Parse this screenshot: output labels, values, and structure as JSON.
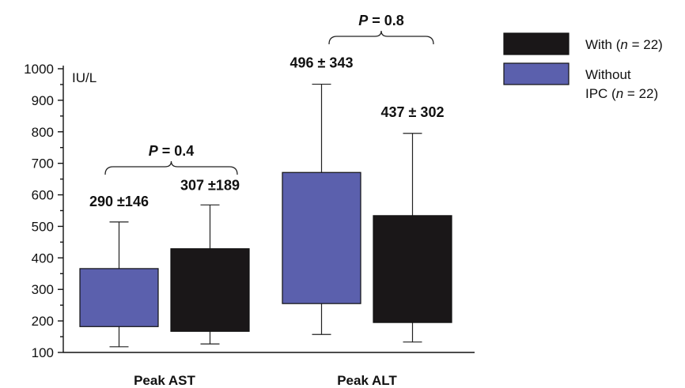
{
  "chart_data": {
    "type": "box",
    "y_unit": "IU/L",
    "ylim": [
      100,
      1000
    ],
    "yticks": [
      100,
      200,
      300,
      400,
      500,
      600,
      700,
      800,
      900,
      1000
    ],
    "categories": [
      "Peak AST",
      "Peak ALT"
    ],
    "legend": {
      "placement": "top-right",
      "entries": [
        {
          "label": "With (",
          "italic": "n",
          "suffix": " = 22)",
          "color": "#1a1718"
        },
        {
          "label": "Without",
          "line2_prefix": "IPC (",
          "italic": "n",
          "suffix": " = 22)",
          "color": "#5b60ad"
        }
      ]
    },
    "groups": [
      {
        "category": "Peak AST",
        "p_value": {
          "label": "P",
          "text": " = 0.4"
        },
        "boxes": [
          {
            "series": "Without",
            "color": "#5b60ad",
            "whisker_low": 118,
            "q1": 182,
            "q3": 366,
            "whisker_high": 514,
            "annotation": "290 ±146"
          },
          {
            "series": "With",
            "color": "#1a1718",
            "whisker_low": 127,
            "q1": 167,
            "q3": 429,
            "whisker_high": 568,
            "annotation": "307 ±189"
          }
        ]
      },
      {
        "category": "Peak ALT",
        "p_value": {
          "label": "P",
          "text": " = 0.8"
        },
        "boxes": [
          {
            "series": "Without",
            "color": "#5b60ad",
            "whisker_low": 157,
            "q1": 255,
            "q3": 671,
            "whisker_high": 951,
            "annotation": "496 ± 343"
          },
          {
            "series": "With",
            "color": "#1a1718",
            "whisker_low": 133,
            "q1": 195,
            "q3": 534,
            "whisker_high": 795,
            "annotation": "437 ± 302"
          }
        ]
      }
    ]
  }
}
